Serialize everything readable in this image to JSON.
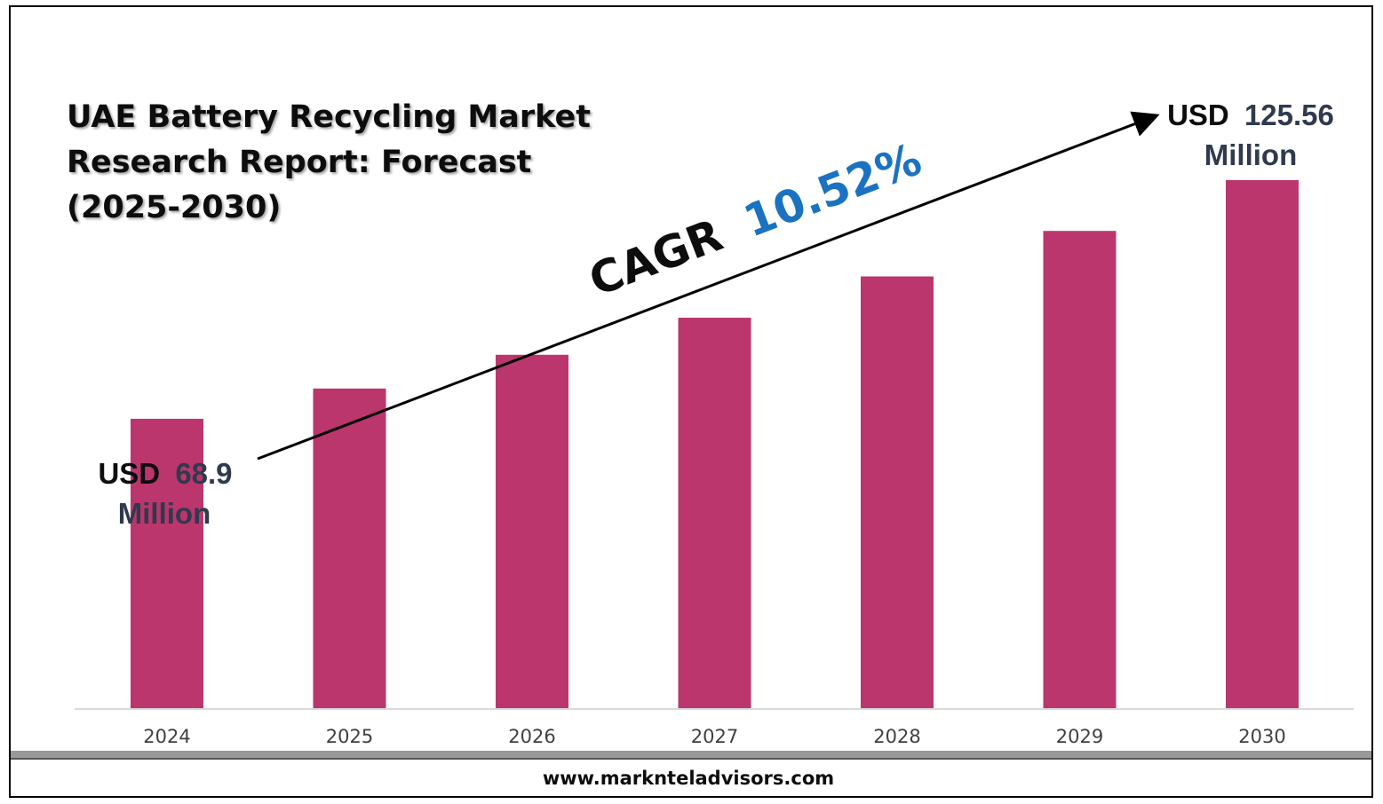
{
  "chart_data": {
    "type": "bar",
    "title_lines": [
      "UAE Battery Recycling Market",
      "Research Report: Forecast",
      "(2025-2030)"
    ],
    "categories": [
      "2024",
      "2025",
      "2026",
      "2027",
      "2028",
      "2029",
      "2030"
    ],
    "values": [
      68.9,
      76.1,
      84.1,
      92.9,
      102.7,
      113.5,
      125.56
    ],
    "ylim": [
      0,
      125.56
    ],
    "bar_color": "#bb366d",
    "grid": false,
    "start_label": {
      "prefix": "USD",
      "value": "68.9",
      "unit": "Million"
    },
    "end_label": {
      "prefix": "USD",
      "value": "125.56",
      "unit": "Million"
    },
    "cagr": {
      "label": "CAGR",
      "value": "10.52%",
      "value_color": "#1a72c1"
    }
  },
  "footer": {
    "website": "www.marknteladvisors.com"
  }
}
